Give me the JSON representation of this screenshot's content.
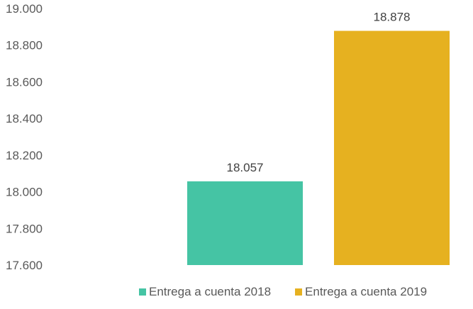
{
  "chart_data": {
    "type": "bar",
    "title": "",
    "xlabel": "",
    "ylabel": "",
    "ylim": [
      17600,
      19000
    ],
    "yticks": [
      17600,
      17800,
      18000,
      18200,
      18400,
      18600,
      18800,
      19000
    ],
    "ytick_labels": [
      "17.600",
      "17.800",
      "18.000",
      "18.200",
      "18.400",
      "18.600",
      "18.800",
      "19.000"
    ],
    "grid": false,
    "legend_position": "bottom",
    "series": [
      {
        "name": "Entrega a cuenta 2018",
        "values": [
          18057
        ],
        "label": "18.057",
        "color": "#45C4A4"
      },
      {
        "name": "Entrega a cuenta 2019",
        "values": [
          18878
        ],
        "label": "18.878",
        "color": "#E6B120"
      }
    ]
  }
}
